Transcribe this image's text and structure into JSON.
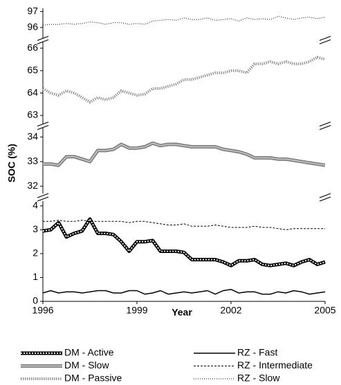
{
  "chart_data": [
    {
      "type": "line",
      "ylim": [
        95.3,
        97.2
      ],
      "yticks": [
        96,
        97
      ],
      "series": [
        {
          "name": "RZ - Slow",
          "color": "#000000",
          "style": "dotted",
          "values": [
            96.15,
            96.2,
            96.2,
            96.25,
            96.2,
            96.25,
            96.35,
            96.3,
            96.2,
            96.3,
            96.3,
            96.2,
            96.25,
            96.2,
            96.4,
            96.45,
            96.5,
            96.45,
            96.6,
            96.5,
            96.5,
            96.6,
            96.45,
            96.5,
            96.55,
            96.4,
            96.6,
            96.5,
            96.55,
            96.5,
            96.7,
            96.6,
            96.5,
            96.6,
            96.65,
            96.55,
            96.65
          ]
        }
      ]
    },
    {
      "type": "line",
      "ylim": [
        62.6,
        66.3
      ],
      "yticks": [
        63,
        64,
        65,
        66
      ],
      "series": [
        {
          "name": "DM - Passive",
          "color": "#999999",
          "style": "dotted-thick",
          "values": [
            64.2,
            64.0,
            63.9,
            64.1,
            64.0,
            63.8,
            63.6,
            63.8,
            63.7,
            63.8,
            64.1,
            64.0,
            63.9,
            63.95,
            64.2,
            64.2,
            64.3,
            64.4,
            64.6,
            64.6,
            64.7,
            64.8,
            64.9,
            64.9,
            65.0,
            65.0,
            64.9,
            65.3,
            65.3,
            65.4,
            65.3,
            65.4,
            65.3,
            65.3,
            65.4,
            65.6,
            65.5
          ]
        }
      ]
    },
    {
      "type": "line",
      "ylim": [
        31.7,
        34.4
      ],
      "yticks": [
        32,
        33,
        34
      ],
      "ylabel": "SOC (%)",
      "series": [
        {
          "name": "DM - Slow",
          "color": "#808080",
          "style": "double",
          "values": [
            32.9,
            32.9,
            32.85,
            33.2,
            33.2,
            33.1,
            33.0,
            33.45,
            33.45,
            33.5,
            33.7,
            33.55,
            33.55,
            33.6,
            33.75,
            33.65,
            33.7,
            33.7,
            33.65,
            33.6,
            33.6,
            33.6,
            33.6,
            33.5,
            33.45,
            33.4,
            33.3,
            33.15,
            33.15,
            33.15,
            33.1,
            33.1,
            33.05,
            33.0,
            32.95,
            32.9,
            32.85
          ]
        }
      ]
    },
    {
      "type": "line",
      "ylim": [
        0,
        4.2
      ],
      "yticks": [
        0,
        1,
        2,
        3,
        4
      ],
      "xlabel": "Year",
      "xlim": [
        1996,
        2005
      ],
      "xticks": [
        1996,
        1999,
        2002,
        2005
      ],
      "x": [
        1996,
        1996.25,
        1996.5,
        1996.75,
        1997,
        1997.25,
        1997.5,
        1997.75,
        1998,
        1998.25,
        1998.5,
        1998.75,
        1999,
        1999.25,
        1999.5,
        1999.75,
        2000,
        2000.25,
        2000.5,
        2000.75,
        2001,
        2001.25,
        2001.5,
        2001.75,
        2002,
        2002.25,
        2002.5,
        2002.75,
        2003,
        2003.25,
        2003.5,
        2003.75,
        2004,
        2004.25,
        2004.5,
        2004.75,
        2005
      ],
      "series": [
        {
          "name": "DM - Active",
          "color": "#000000",
          "style": "hollow",
          "values": [
            2.95,
            3.0,
            3.3,
            2.7,
            2.85,
            2.95,
            3.45,
            2.85,
            2.85,
            2.8,
            2.5,
            2.1,
            2.5,
            2.5,
            2.55,
            2.1,
            2.1,
            2.1,
            2.05,
            1.75,
            1.75,
            1.75,
            1.75,
            1.65,
            1.5,
            1.7,
            1.7,
            1.75,
            1.55,
            1.5,
            1.55,
            1.6,
            1.5,
            1.65,
            1.75,
            1.55,
            1.65
          ]
        },
        {
          "name": "RZ - Fast",
          "color": "#000000",
          "style": "solid",
          "values": [
            0.35,
            0.45,
            0.35,
            0.4,
            0.4,
            0.35,
            0.4,
            0.45,
            0.45,
            0.35,
            0.35,
            0.45,
            0.45,
            0.3,
            0.35,
            0.45,
            0.3,
            0.35,
            0.4,
            0.35,
            0.4,
            0.45,
            0.3,
            0.45,
            0.5,
            0.35,
            0.4,
            0.4,
            0.3,
            0.3,
            0.4,
            0.35,
            0.45,
            0.4,
            0.3,
            0.35,
            0.4
          ]
        },
        {
          "name": "RZ - Intermediate",
          "color": "#000000",
          "style": "dashed",
          "values": [
            3.35,
            3.35,
            3.4,
            3.35,
            3.35,
            3.4,
            3.35,
            3.35,
            3.35,
            3.35,
            3.35,
            3.3,
            3.35,
            3.35,
            3.3,
            3.25,
            3.2,
            3.2,
            3.25,
            3.15,
            3.15,
            3.15,
            3.2,
            3.15,
            3.1,
            3.1,
            3.1,
            3.15,
            3.1,
            3.1,
            3.05,
            3.0,
            3.05,
            3.05,
            3.05,
            3.05,
            3.05
          ]
        }
      ]
    }
  ]
}
